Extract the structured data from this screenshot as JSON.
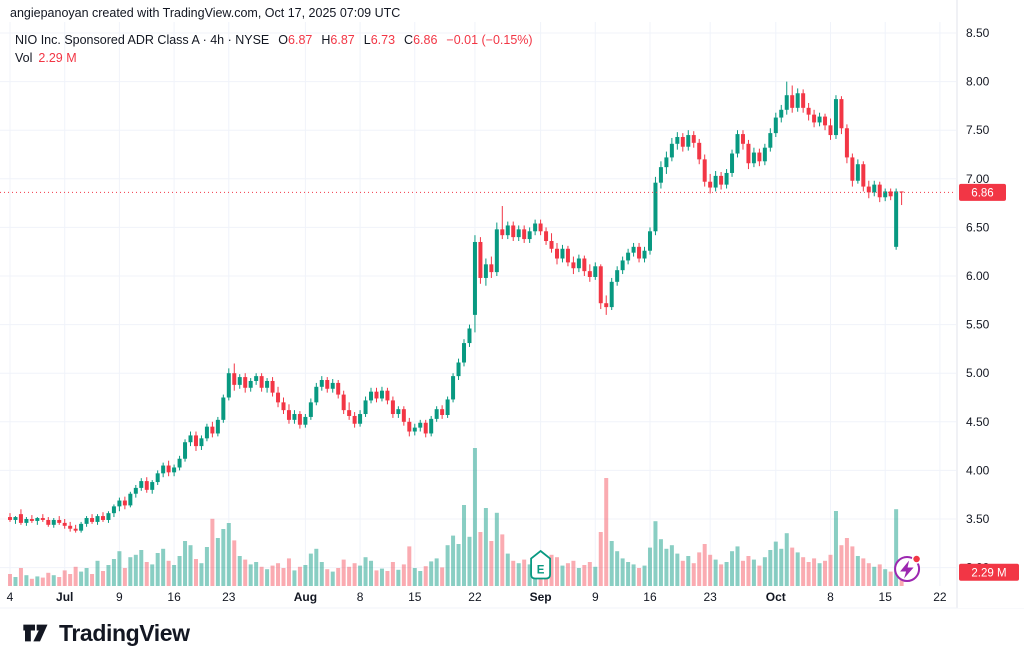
{
  "attribution": "angiepanoyan created with TradingView.com, Oct 17, 2025 07:09 UTC",
  "legend": {
    "title": "NIO Inc. Sponsored ADR Class A · 4h · NYSE",
    "ohlc": [
      {
        "label": "O",
        "value": "6.87"
      },
      {
        "label": "H",
        "value": "6.87"
      },
      {
        "label": "L",
        "value": "6.73"
      },
      {
        "label": "C",
        "value": "6.86"
      }
    ],
    "change": "−0.01 (−0.15%)",
    "vol_label": "Vol",
    "vol_value": "2.29 M"
  },
  "price_axis": {
    "labels": [
      "8.50",
      "8.00",
      "7.50",
      "7.00",
      "6.50",
      "6.00",
      "5.50",
      "5.00",
      "4.50",
      "4.00",
      "3.50",
      "3.00"
    ],
    "levels": [
      8.5,
      8.0,
      7.5,
      7.0,
      6.5,
      6.0,
      5.5,
      5.0,
      4.5,
      4.0,
      3.5,
      3.0
    ],
    "price_badge": "6.86",
    "volume_badge": "2.29 M"
  },
  "time_axis": {
    "ticks": [
      {
        "index": 0,
        "label": "4",
        "bold": false
      },
      {
        "index": 10,
        "label": "Jul",
        "bold": true
      },
      {
        "index": 20,
        "label": "9",
        "bold": false
      },
      {
        "index": 30,
        "label": "16",
        "bold": false
      },
      {
        "index": 40,
        "label": "23",
        "bold": false
      },
      {
        "index": 54,
        "label": "Aug",
        "bold": true
      },
      {
        "index": 64,
        "label": "8",
        "bold": false
      },
      {
        "index": 74,
        "label": "15",
        "bold": false
      },
      {
        "index": 85,
        "label": "22",
        "bold": false
      },
      {
        "index": 97,
        "label": "Sep",
        "bold": true
      },
      {
        "index": 107,
        "label": "9",
        "bold": false
      },
      {
        "index": 117,
        "label": "16",
        "bold": false
      },
      {
        "index": 128,
        "label": "23",
        "bold": false
      },
      {
        "index": 140,
        "label": "Oct",
        "bold": true
      },
      {
        "index": 150,
        "label": "8",
        "bold": false
      },
      {
        "index": 160,
        "label": "15",
        "bold": false
      },
      {
        "index": 170,
        "label": "22",
        "bold": false
      }
    ]
  },
  "markers": {
    "earnings": {
      "index": 97,
      "label": "E"
    },
    "flash": {
      "index": 164
    }
  },
  "logo": {
    "text": "TradingView"
  },
  "chart_data": {
    "type": "candlestick+volume",
    "symbol": "NIO Inc. Sponsored ADR Class A",
    "interval": "4h",
    "exchange": "NYSE",
    "last_price": 6.86,
    "price_line": 6.86,
    "last_volume_m": 2.29,
    "ylim": [
      2.95,
      8.62
    ],
    "yticks": [
      3.0,
      3.5,
      4.0,
      4.5,
      5.0,
      5.5,
      6.0,
      6.5,
      7.0,
      7.5,
      8.0,
      8.5
    ],
    "legend_position": "top-left",
    "grid": true,
    "colors": {
      "up": "#089981",
      "down": "#f23645",
      "vol_up": "rgba(8,153,129,0.48)",
      "vol_down": "rgba(242,54,69,0.42)",
      "grid": "#f0f3fa",
      "axis_text": "#131722",
      "badge": "#f23645",
      "price_line": "#f23645",
      "marker_purple": "#9c27b0",
      "border": "#e0e3eb"
    },
    "bars_format": [
      "open",
      "high",
      "low",
      "close",
      "volume_millions"
    ],
    "bars": [
      [
        3.52,
        3.56,
        3.47,
        3.49,
        2.0
      ],
      [
        3.49,
        3.53,
        3.45,
        3.52,
        1.5
      ],
      [
        3.55,
        3.6,
        3.44,
        3.46,
        3.0
      ],
      [
        3.46,
        3.52,
        3.43,
        3.5,
        1.8
      ],
      [
        3.5,
        3.54,
        3.46,
        3.48,
        1.2
      ],
      [
        3.48,
        3.52,
        3.44,
        3.51,
        1.6
      ],
      [
        3.51,
        3.55,
        3.47,
        3.49,
        1.4
      ],
      [
        3.49,
        3.52,
        3.42,
        3.44,
        2.2
      ],
      [
        3.44,
        3.51,
        3.41,
        3.49,
        1.8
      ],
      [
        3.49,
        3.53,
        3.44,
        3.46,
        1.5
      ],
      [
        3.46,
        3.5,
        3.4,
        3.43,
        2.6
      ],
      [
        3.43,
        3.47,
        3.37,
        3.4,
        2.0
      ],
      [
        3.4,
        3.44,
        3.36,
        3.38,
        3.2
      ],
      [
        3.38,
        3.47,
        3.36,
        3.45,
        2.4
      ],
      [
        3.45,
        3.53,
        3.42,
        3.51,
        3.0
      ],
      [
        3.51,
        3.55,
        3.45,
        3.47,
        2.0
      ],
      [
        3.47,
        3.55,
        3.44,
        3.53,
        4.2
      ],
      [
        3.53,
        3.57,
        3.47,
        3.49,
        2.5
      ],
      [
        3.49,
        3.58,
        3.46,
        3.56,
        3.5
      ],
      [
        3.56,
        3.65,
        3.52,
        3.63,
        4.5
      ],
      [
        3.63,
        3.72,
        3.58,
        3.69,
        5.8
      ],
      [
        3.69,
        3.73,
        3.6,
        3.64,
        3.0
      ],
      [
        3.64,
        3.78,
        3.62,
        3.76,
        4.8
      ],
      [
        3.76,
        3.85,
        3.72,
        3.82,
        5.2
      ],
      [
        3.82,
        3.92,
        3.79,
        3.89,
        6.0
      ],
      [
        3.89,
        3.93,
        3.77,
        3.8,
        4.0
      ],
      [
        3.8,
        3.9,
        3.76,
        3.88,
        3.6
      ],
      [
        3.88,
        4.0,
        3.85,
        3.97,
        5.5
      ],
      [
        3.97,
        4.08,
        3.93,
        4.05,
        6.2
      ],
      [
        4.05,
        4.1,
        3.94,
        3.98,
        4.2
      ],
      [
        3.98,
        4.06,
        3.94,
        4.03,
        3.5
      ],
      [
        4.03,
        4.15,
        4.0,
        4.12,
        5.0
      ],
      [
        4.12,
        4.32,
        4.09,
        4.29,
        7.5
      ],
      [
        4.29,
        4.4,
        4.25,
        4.36,
        6.8
      ],
      [
        4.36,
        4.4,
        4.2,
        4.25,
        4.5
      ],
      [
        4.25,
        4.36,
        4.21,
        4.33,
        3.8
      ],
      [
        4.33,
        4.48,
        4.3,
        4.45,
        6.5
      ],
      [
        4.45,
        4.5,
        4.34,
        4.38,
        11.2
      ],
      [
        4.38,
        4.55,
        4.35,
        4.52,
        8.0
      ],
      [
        4.52,
        4.78,
        4.49,
        4.75,
        9.5
      ],
      [
        4.75,
        5.05,
        4.72,
        5.0,
        10.5
      ],
      [
        5.0,
        5.1,
        4.82,
        4.88,
        7.6
      ],
      [
        4.88,
        4.99,
        4.84,
        4.96,
        5.0
      ],
      [
        4.96,
        5.0,
        4.8,
        4.85,
        4.4
      ],
      [
        4.85,
        4.95,
        4.81,
        4.92,
        3.6
      ],
      [
        4.92,
        5.0,
        4.88,
        4.97,
        4.0
      ],
      [
        4.97,
        5.0,
        4.81,
        4.85,
        3.2
      ],
      [
        4.85,
        4.95,
        4.8,
        4.92,
        2.8
      ],
      [
        4.92,
        4.96,
        4.76,
        4.8,
        3.4
      ],
      [
        4.8,
        4.86,
        4.65,
        4.7,
        3.8
      ],
      [
        4.7,
        4.75,
        4.58,
        4.62,
        3.0
      ],
      [
        4.62,
        4.68,
        4.48,
        4.52,
        4.6
      ],
      [
        4.52,
        4.62,
        4.48,
        4.58,
        2.6
      ],
      [
        4.58,
        4.61,
        4.43,
        4.47,
        3.2
      ],
      [
        4.47,
        4.58,
        4.44,
        4.55,
        3.5
      ],
      [
        4.55,
        4.74,
        4.52,
        4.7,
        5.4
      ],
      [
        4.7,
        4.9,
        4.67,
        4.86,
        6.2
      ],
      [
        4.86,
        4.97,
        4.82,
        4.93,
        4.0
      ],
      [
        4.93,
        4.96,
        4.8,
        4.84,
        2.8
      ],
      [
        4.84,
        4.94,
        4.8,
        4.9,
        2.4
      ],
      [
        4.9,
        4.93,
        4.74,
        4.78,
        3.0
      ],
      [
        4.78,
        4.82,
        4.58,
        4.62,
        4.4
      ],
      [
        4.62,
        4.7,
        4.52,
        4.56,
        3.2
      ],
      [
        4.56,
        4.6,
        4.44,
        4.48,
        3.8
      ],
      [
        4.48,
        4.62,
        4.45,
        4.58,
        3.4
      ],
      [
        4.58,
        4.76,
        4.55,
        4.72,
        4.8
      ],
      [
        4.72,
        4.85,
        4.69,
        4.81,
        4.2
      ],
      [
        4.81,
        4.85,
        4.7,
        4.74,
        2.6
      ],
      [
        4.74,
        4.86,
        4.71,
        4.82,
        2.9
      ],
      [
        4.82,
        4.85,
        4.68,
        4.72,
        2.5
      ],
      [
        4.72,
        4.76,
        4.54,
        4.58,
        4.0
      ],
      [
        4.58,
        4.66,
        4.54,
        4.63,
        2.7
      ],
      [
        4.63,
        4.66,
        4.46,
        4.5,
        3.6
      ],
      [
        4.5,
        4.54,
        4.35,
        4.4,
        6.6
      ],
      [
        4.4,
        4.48,
        4.36,
        4.44,
        3.0
      ],
      [
        4.44,
        4.52,
        4.4,
        4.49,
        2.5
      ],
      [
        4.49,
        4.52,
        4.34,
        4.38,
        3.3
      ],
      [
        4.38,
        4.56,
        4.35,
        4.53,
        4.1
      ],
      [
        4.53,
        4.66,
        4.5,
        4.63,
        4.6
      ],
      [
        4.63,
        4.67,
        4.53,
        4.57,
        3.1
      ],
      [
        4.57,
        4.76,
        4.54,
        4.73,
        6.8
      ],
      [
        4.73,
        5.0,
        4.7,
        4.97,
        8.4
      ],
      [
        4.97,
        5.15,
        4.93,
        5.11,
        7.0
      ],
      [
        5.11,
        5.35,
        5.07,
        5.31,
        13.5
      ],
      [
        5.31,
        5.5,
        5.27,
        5.46,
        8.2
      ],
      [
        5.6,
        6.42,
        5.42,
        6.35,
        23.0
      ],
      [
        6.35,
        6.4,
        5.92,
        5.98,
        9.0
      ],
      [
        5.98,
        6.18,
        5.9,
        6.12,
        13.0
      ],
      [
        6.12,
        6.2,
        5.98,
        6.04,
        7.5
      ],
      [
        6.04,
        6.55,
        6.0,
        6.48,
        12.2
      ],
      [
        6.48,
        6.72,
        6.38,
        6.42,
        8.6
      ],
      [
        6.42,
        6.56,
        6.38,
        6.52,
        5.4
      ],
      [
        6.52,
        6.56,
        6.36,
        6.4,
        4.2
      ],
      [
        6.4,
        6.52,
        6.36,
        6.48,
        3.8
      ],
      [
        6.48,
        6.52,
        6.34,
        6.38,
        4.4
      ],
      [
        6.38,
        6.5,
        6.34,
        6.46,
        3.6
      ],
      [
        6.46,
        6.58,
        6.42,
        6.54,
        5.0
      ],
      [
        6.54,
        6.58,
        6.42,
        6.46,
        3.2
      ],
      [
        6.46,
        6.5,
        6.32,
        6.36,
        4.6
      ],
      [
        6.36,
        6.44,
        6.24,
        6.28,
        5.2
      ],
      [
        6.28,
        6.34,
        6.12,
        6.18,
        4.8
      ],
      [
        6.18,
        6.32,
        6.14,
        6.28,
        3.4
      ],
      [
        6.28,
        6.31,
        6.1,
        6.14,
        3.8
      ],
      [
        6.14,
        6.2,
        6.02,
        6.08,
        4.2
      ],
      [
        6.08,
        6.22,
        6.04,
        6.18,
        3.0
      ],
      [
        6.18,
        6.21,
        6.0,
        6.05,
        3.5
      ],
      [
        6.05,
        6.12,
        5.94,
        5.99,
        4.0
      ],
      [
        5.99,
        6.14,
        5.96,
        6.1,
        3.2
      ],
      [
        6.1,
        6.12,
        5.66,
        5.72,
        9.0
      ],
      [
        5.72,
        5.8,
        5.6,
        5.68,
        18.0
      ],
      [
        5.68,
        5.98,
        5.65,
        5.94,
        7.5
      ],
      [
        5.94,
        6.1,
        5.9,
        6.06,
        5.8
      ],
      [
        6.06,
        6.2,
        6.02,
        6.16,
        4.6
      ],
      [
        6.16,
        6.28,
        6.12,
        6.24,
        4.0
      ],
      [
        6.24,
        6.34,
        6.2,
        6.3,
        3.6
      ],
      [
        6.3,
        6.34,
        6.14,
        6.18,
        3.0
      ],
      [
        6.18,
        6.3,
        6.14,
        6.26,
        3.4
      ],
      [
        6.26,
        6.5,
        6.22,
        6.46,
        6.4
      ],
      [
        6.46,
        7.02,
        6.42,
        6.96,
        10.8
      ],
      [
        6.96,
        7.18,
        6.9,
        7.12,
        7.8
      ],
      [
        7.12,
        7.28,
        7.05,
        7.22,
        6.2
      ],
      [
        7.22,
        7.42,
        7.18,
        7.36,
        6.8
      ],
      [
        7.36,
        7.48,
        7.3,
        7.43,
        5.4
      ],
      [
        7.43,
        7.47,
        7.28,
        7.33,
        4.2
      ],
      [
        7.33,
        7.5,
        7.29,
        7.45,
        5.0
      ],
      [
        7.45,
        7.49,
        7.32,
        7.37,
        3.8
      ],
      [
        7.37,
        7.41,
        7.15,
        7.2,
        5.6
      ],
      [
        7.2,
        7.25,
        6.92,
        6.97,
        7.0
      ],
      [
        6.97,
        7.05,
        6.85,
        6.91,
        5.2
      ],
      [
        6.91,
        7.08,
        6.87,
        7.03,
        4.4
      ],
      [
        7.03,
        7.07,
        6.89,
        6.94,
        3.6
      ],
      [
        6.94,
        7.1,
        6.9,
        7.06,
        4.0
      ],
      [
        7.06,
        7.3,
        7.02,
        7.26,
        5.8
      ],
      [
        7.26,
        7.5,
        7.22,
        7.46,
        6.6
      ],
      [
        7.46,
        7.5,
        7.3,
        7.36,
        4.2
      ],
      [
        7.36,
        7.4,
        7.1,
        7.16,
        5.0
      ],
      [
        7.16,
        7.32,
        7.12,
        7.27,
        4.4
      ],
      [
        7.27,
        7.31,
        7.13,
        7.18,
        3.4
      ],
      [
        7.18,
        7.36,
        7.14,
        7.32,
        4.8
      ],
      [
        7.32,
        7.52,
        7.28,
        7.47,
        6.0
      ],
      [
        7.47,
        7.68,
        7.43,
        7.63,
        7.4
      ],
      [
        7.63,
        7.76,
        7.58,
        7.71,
        6.2
      ],
      [
        7.71,
        8.0,
        7.66,
        7.86,
        8.8
      ],
      [
        7.86,
        7.96,
        7.68,
        7.73,
        6.4
      ],
      [
        7.73,
        7.93,
        7.69,
        7.88,
        5.6
      ],
      [
        7.88,
        7.92,
        7.68,
        7.73,
        4.8
      ],
      [
        7.73,
        7.78,
        7.6,
        7.66,
        4.0
      ],
      [
        7.66,
        7.71,
        7.53,
        7.58,
        4.6
      ],
      [
        7.58,
        7.68,
        7.54,
        7.64,
        3.8
      ],
      [
        7.64,
        7.67,
        7.5,
        7.55,
        4.2
      ],
      [
        7.55,
        7.62,
        7.4,
        7.45,
        5.2
      ],
      [
        7.45,
        7.86,
        7.41,
        7.82,
        12.5
      ],
      [
        7.82,
        7.85,
        7.46,
        7.52,
        6.8
      ],
      [
        7.52,
        7.56,
        7.16,
        7.22,
        8.0
      ],
      [
        7.22,
        7.26,
        6.92,
        6.98,
        6.6
      ],
      [
        6.98,
        7.2,
        6.95,
        7.15,
        5.0
      ],
      [
        7.15,
        7.18,
        6.87,
        6.92,
        4.6
      ],
      [
        6.92,
        6.98,
        6.8,
        6.86,
        3.8
      ],
      [
        6.86,
        6.98,
        6.82,
        6.94,
        3.2
      ],
      [
        6.94,
        6.97,
        6.76,
        6.81,
        3.6
      ],
      [
        6.81,
        6.9,
        6.77,
        6.87,
        2.8
      ],
      [
        6.87,
        6.9,
        6.78,
        6.82,
        2.4
      ],
      [
        6.3,
        6.9,
        6.27,
        6.87,
        12.8
      ],
      [
        6.87,
        6.87,
        6.73,
        6.86,
        2.29
      ]
    ]
  }
}
